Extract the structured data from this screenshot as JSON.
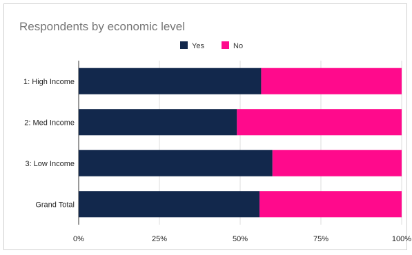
{
  "chart_data": {
    "type": "bar",
    "orientation": "horizontal",
    "stacked": "percent",
    "title": "Respondents by economic level",
    "categories": [
      "1: High Income",
      "2: Med Income",
      "3: Low Income",
      "Grand Total"
    ],
    "series": [
      {
        "name": "Yes",
        "color": "#12284c",
        "values": [
          56.5,
          49,
          60,
          56
        ]
      },
      {
        "name": "No",
        "color": "#ff0a8c",
        "values": [
          43.5,
          51,
          40,
          44
        ]
      }
    ],
    "xlim": [
      0,
      100
    ],
    "x_ticks": [
      "0%",
      "25%",
      "50%",
      "75%",
      "100%"
    ],
    "grid": true,
    "legend_position": "top"
  }
}
